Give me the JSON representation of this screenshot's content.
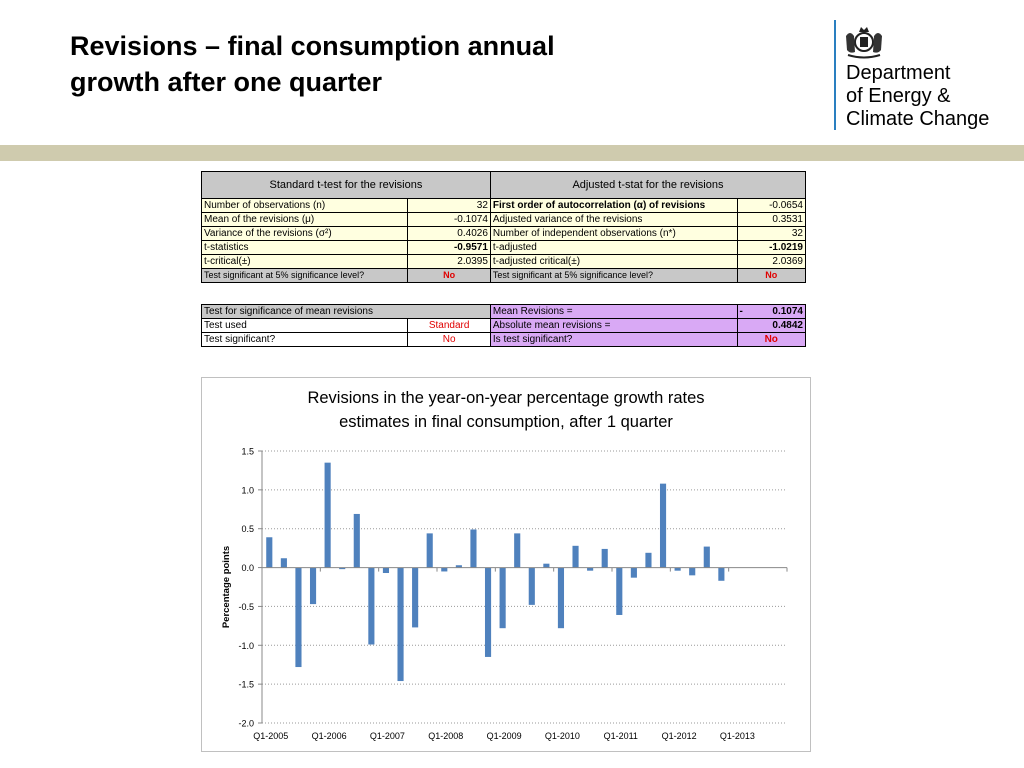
{
  "slide": {
    "title_line1": "Revisions – final consumption annual",
    "title_line2": "growth after one quarter"
  },
  "logo": {
    "text": "Department\nof Energy &\nClimate Change",
    "icon": "royal-crest-icon"
  },
  "colors": {
    "band": "#cfcbae",
    "bar": "#4f81bd",
    "header_grey": "#c8c8c8",
    "highlight_yellow": "#ffffe0",
    "purple": "#d9a9f5",
    "red_text": "#e00000"
  },
  "table1": {
    "left_header": "Standard t-test for the revisions",
    "right_header": "Adjusted t-stat for the revisions",
    "rows": [
      {
        "l_label": "Number of observations (n)",
        "l_value": "32",
        "r_label": "First order of autocorrelation (α) of revisions",
        "r_value": "-0.0654"
      },
      {
        "l_label": "Mean of the revisions (μ)",
        "l_value": "-0.1074",
        "r_label": "Adjusted variance of the revisions",
        "r_value": "0.3531"
      },
      {
        "l_label": "Variance of the revisions (σ²)",
        "l_value": "0.4026",
        "r_label": "Number of independent observations (n*)",
        "r_value": "32"
      },
      {
        "l_label": "t-statistics",
        "l_value": "-0.9571",
        "r_label": "t-adjusted",
        "r_value": "-1.0219"
      },
      {
        "l_label": "t-critical(±)",
        "l_value": "2.0395",
        "r_label": "t-adjusted critical(±)",
        "r_value": "2.0369"
      }
    ],
    "sig_row": {
      "l_label": "Test significant at 5% significance level?",
      "l_value": "No",
      "r_label": "Test significant at 5% significance level?",
      "r_value": "No"
    }
  },
  "table2": {
    "rows": [
      {
        "l_label": "Test for significance of mean revisions",
        "l_value": "",
        "r_label": "Mean Revisions =",
        "r_prefix": "-",
        "r_value": "0.1074"
      },
      {
        "l_label": "Test used",
        "l_value": "Standard",
        "r_label": "Absolute mean revisions =",
        "r_prefix": "",
        "r_value": "0.4842"
      },
      {
        "l_label": "Test significant?",
        "l_value": "No",
        "r_label": "Is test significant?",
        "r_prefix": "",
        "r_value": "No"
      }
    ]
  },
  "chart_data": {
    "type": "bar",
    "title_line1": "Revisions in the year-on-year percentage growth rates",
    "title_line2": "estimates in final consumption, after 1 quarter",
    "xlabel": "",
    "ylabel": "Percentage points",
    "ylim": [
      -2.0,
      1.5
    ],
    "yticks": [
      "1.5",
      "1.0",
      "0.5",
      "0.0",
      "-0.5",
      "-1.0",
      "-1.5",
      "-2.0"
    ],
    "ytick_values": [
      1.5,
      1.0,
      0.5,
      0.0,
      -0.5,
      -1.0,
      -1.5,
      -2.0
    ],
    "grid": true,
    "categories": [
      "Q1-2005",
      "Q2-2005",
      "Q3-2005",
      "Q4-2005",
      "Q1-2006",
      "Q2-2006",
      "Q3-2006",
      "Q4-2006",
      "Q1-2007",
      "Q2-2007",
      "Q3-2007",
      "Q4-2007",
      "Q1-2008",
      "Q2-2008",
      "Q3-2008",
      "Q4-2008",
      "Q1-2009",
      "Q2-2009",
      "Q3-2009",
      "Q4-2009",
      "Q1-2010",
      "Q2-2010",
      "Q3-2010",
      "Q4-2010",
      "Q1-2011",
      "Q2-2011",
      "Q3-2011",
      "Q4-2011",
      "Q1-2012",
      "Q2-2012",
      "Q3-2012",
      "Q4-2012",
      "Q1-2013",
      "Q2-2013",
      "Q3-2013",
      "Q4-2013"
    ],
    "xtick_labels": [
      "Q1-2005",
      "Q1-2006",
      "Q1-2007",
      "Q1-2008",
      "Q1-2009",
      "Q1-2010",
      "Q1-2011",
      "Q1-2012",
      "Q1-2013"
    ],
    "values": [
      0.39,
      0.12,
      -1.28,
      -0.47,
      1.35,
      -0.02,
      0.69,
      -0.99,
      -0.07,
      -1.46,
      -0.77,
      0.44,
      -0.05,
      0.03,
      0.49,
      -1.15,
      -0.78,
      0.44,
      -0.48,
      0.05,
      -0.78,
      0.28,
      -0.04,
      0.24,
      -0.61,
      -0.13,
      0.19,
      1.08,
      -0.04,
      -0.1,
      0.27,
      -0.17,
      null,
      null,
      null,
      null
    ]
  }
}
